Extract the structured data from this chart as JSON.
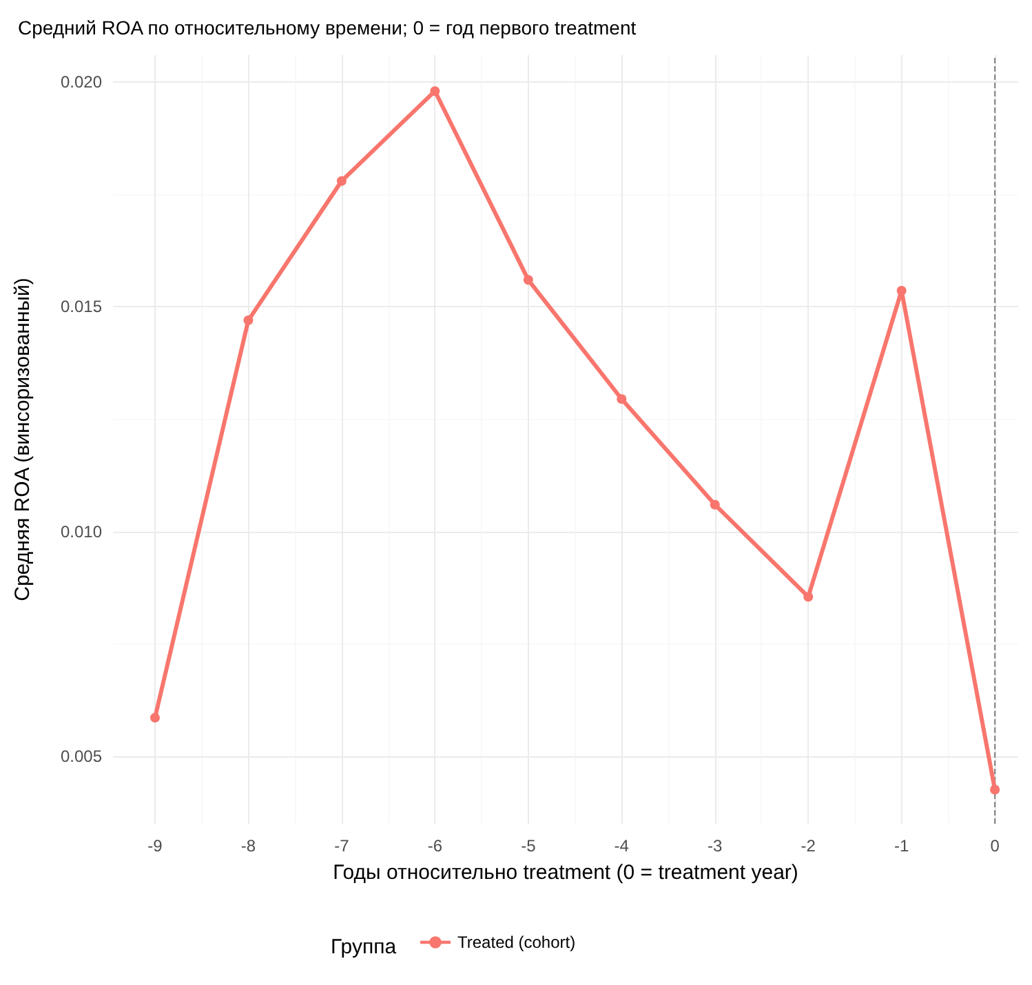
{
  "chart_data": {
    "type": "line",
    "title": "Средний ROA по относительному времени; 0 = год первого treatment",
    "xlabel": "Годы относительно treatment (0 = treatment year)",
    "ylabel": "Средняя ROA (винсоризованный)",
    "legend_title": "Группа",
    "x": [
      -9,
      -8,
      -7,
      -6,
      -5,
      -4,
      -3,
      -2,
      -1,
      0
    ],
    "series": [
      {
        "name": "Treated (cohort)",
        "color": "#f8766d",
        "values": [
          0.00586,
          0.0147,
          0.0178,
          0.0198,
          0.0156,
          0.01295,
          0.0106,
          0.00855,
          0.01536,
          0.00426
        ]
      }
    ],
    "xlim": [
      -9.45,
      0.25
    ],
    "xticks": [
      -9,
      -8,
      -7,
      -6,
      -5,
      -4,
      -3,
      -2,
      -1,
      0
    ],
    "ylim": [
      0.0035,
      0.0206
    ],
    "yticks": [
      {
        "value": 0.005,
        "label": "0.005"
      },
      {
        "value": 0.01,
        "label": "0.010"
      },
      {
        "value": 0.015,
        "label": "0.015"
      },
      {
        "value": 0.02,
        "label": "0.020"
      }
    ],
    "ref_lines": [
      {
        "axis": "x",
        "value": 0,
        "label": null,
        "color": "#808080",
        "line_style": "dashed"
      }
    ],
    "grid": true,
    "legend": "bottom",
    "marker": "circle",
    "line_style": "solid"
  }
}
